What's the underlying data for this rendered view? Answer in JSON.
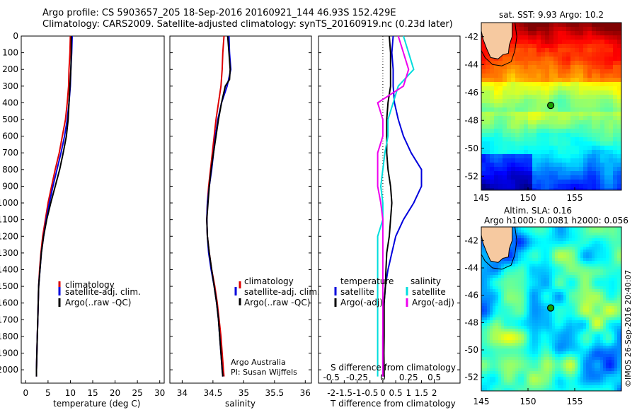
{
  "header": {
    "title_line1": "Argo profile: CS 5903657_205 18-Sep-2016 20160921_144 46.93S 152.429E",
    "title_line2": "Climatology: CARS2009. Satellite-adjusted climatology: synTS_20160919.nc (0.23d later)"
  },
  "colors": {
    "climatology": "#dd0000",
    "satellite": "#0000dd",
    "argo": "#000000",
    "salinity_satellite": "#00dddd",
    "salinity_argo": "#ee00ee"
  },
  "chart_data": [
    {
      "type": "line",
      "panel": "temperature",
      "xlabel": "temperature (deg C)",
      "ylabel": "",
      "xlim": [
        -1,
        31
      ],
      "ylim": [
        2080,
        0
      ],
      "xticks": [
        "0",
        "5",
        "10",
        "15",
        "20",
        "25",
        "30"
      ],
      "yticks": [
        "0",
        "100",
        "200",
        "300",
        "400",
        "500",
        "600",
        "700",
        "800",
        "900",
        "1000",
        "1100",
        "1200",
        "1300",
        "1400",
        "1500",
        "1600",
        "1700",
        "1800",
        "1900",
        "2000"
      ],
      "legend": [
        "climatology",
        "satellite-adj. clim.",
        "Argo(..raw -QC)"
      ],
      "series": [
        {
          "name": "climatology",
          "points": [
            [
              10.0,
              0
            ],
            [
              9.9,
              100
            ],
            [
              9.7,
              200
            ],
            [
              9.6,
              300
            ],
            [
              9.3,
              400
            ],
            [
              8.9,
              500
            ],
            [
              8.2,
              600
            ],
            [
              7.5,
              700
            ],
            [
              6.6,
              800
            ],
            [
              5.8,
              900
            ],
            [
              5.0,
              1000
            ],
            [
              4.4,
              1100
            ],
            [
              3.8,
              1200
            ],
            [
              3.4,
              1300
            ],
            [
              3.1,
              1400
            ],
            [
              2.9,
              1500
            ],
            [
              2.8,
              1600
            ],
            [
              2.7,
              1700
            ],
            [
              2.6,
              1800
            ],
            [
              2.5,
              1900
            ],
            [
              2.4,
              2000
            ],
            [
              2.4,
              2040
            ]
          ]
        },
        {
          "name": "satellite-adj. clim.",
          "points": [
            [
              10.4,
              0
            ],
            [
              10.3,
              100
            ],
            [
              10.1,
              200
            ],
            [
              10.0,
              300
            ],
            [
              9.7,
              400
            ],
            [
              9.3,
              500
            ],
            [
              8.7,
              600
            ],
            [
              7.9,
              700
            ],
            [
              7.0,
              800
            ],
            [
              6.1,
              900
            ],
            [
              5.3,
              1000
            ],
            [
              4.6,
              1100
            ],
            [
              4.0,
              1200
            ],
            [
              3.5,
              1300
            ],
            [
              3.2,
              1400
            ],
            [
              2.9,
              1500
            ],
            [
              2.8,
              1600
            ],
            [
              2.7,
              1700
            ],
            [
              2.6,
              1800
            ],
            [
              2.5,
              1900
            ],
            [
              2.4,
              2000
            ],
            [
              2.4,
              2040
            ]
          ]
        },
        {
          "name": "Argo(..raw -QC)",
          "points": [
            [
              10.2,
              0
            ],
            [
              10.2,
              100
            ],
            [
              10.1,
              200
            ],
            [
              9.9,
              300
            ],
            [
              9.7,
              400
            ],
            [
              9.5,
              500
            ],
            [
              9.1,
              600
            ],
            [
              8.4,
              700
            ],
            [
              7.6,
              800
            ],
            [
              6.6,
              900
            ],
            [
              5.6,
              1000
            ],
            [
              4.7,
              1100
            ],
            [
              4.0,
              1200
            ],
            [
              3.5,
              1300
            ],
            [
              3.2,
              1400
            ],
            [
              2.9,
              1500
            ],
            [
              2.8,
              1600
            ],
            [
              2.7,
              1700
            ],
            [
              2.6,
              1800
            ],
            [
              2.5,
              1900
            ],
            [
              2.4,
              2000
            ],
            [
              2.4,
              2040
            ]
          ]
        }
      ]
    },
    {
      "type": "line",
      "panel": "salinity",
      "xlabel": "salinity",
      "ylabel": "",
      "xlim": [
        33.8,
        36.1
      ],
      "ylim": [
        2080,
        0
      ],
      "xticks": [
        "34",
        "34.5",
        "35",
        "35.5",
        "36"
      ],
      "legend": [
        "climatology",
        "satellite-adj. clim.",
        "Argo(..raw -QC)"
      ],
      "annotation": [
        "Argo Australia",
        "PI: Susan Wijffels"
      ],
      "series": [
        {
          "name": "climatology",
          "points": [
            [
              34.68,
              0
            ],
            [
              34.66,
              100
            ],
            [
              34.65,
              200
            ],
            [
              34.63,
              300
            ],
            [
              34.59,
              400
            ],
            [
              34.55,
              500
            ],
            [
              34.52,
              600
            ],
            [
              34.49,
              700
            ],
            [
              34.46,
              800
            ],
            [
              34.43,
              900
            ],
            [
              34.41,
              1000
            ],
            [
              34.4,
              1100
            ],
            [
              34.41,
              1200
            ],
            [
              34.44,
              1300
            ],
            [
              34.48,
              1400
            ],
            [
              34.53,
              1500
            ],
            [
              34.57,
              1600
            ],
            [
              34.6,
              1700
            ],
            [
              34.63,
              1800
            ],
            [
              34.65,
              1900
            ],
            [
              34.67,
              2000
            ],
            [
              34.68,
              2040
            ]
          ]
        },
        {
          "name": "satellite-adj. clim.",
          "points": [
            [
              34.76,
              0
            ],
            [
              34.77,
              100
            ],
            [
              34.79,
              200
            ],
            [
              34.73,
              300
            ],
            [
              34.64,
              400
            ],
            [
              34.58,
              500
            ],
            [
              34.54,
              600
            ],
            [
              34.51,
              700
            ],
            [
              34.48,
              800
            ],
            [
              34.44,
              900
            ],
            [
              34.41,
              1000
            ],
            [
              34.4,
              1100
            ],
            [
              34.41,
              1200
            ],
            [
              34.43,
              1300
            ],
            [
              34.47,
              1400
            ],
            [
              34.52,
              1500
            ],
            [
              34.56,
              1600
            ],
            [
              34.59,
              1700
            ],
            [
              34.61,
              1800
            ],
            [
              34.63,
              1900
            ],
            [
              34.65,
              2000
            ],
            [
              34.66,
              2040
            ]
          ]
        },
        {
          "name": "Argo(..raw -QC)",
          "points": [
            [
              34.74,
              0
            ],
            [
              34.76,
              100
            ],
            [
              34.78,
              200
            ],
            [
              34.77,
              260
            ],
            [
              34.7,
              300
            ],
            [
              34.64,
              400
            ],
            [
              34.59,
              500
            ],
            [
              34.55,
              600
            ],
            [
              34.51,
              700
            ],
            [
              34.47,
              800
            ],
            [
              34.44,
              900
            ],
            [
              34.42,
              1000
            ],
            [
              34.4,
              1100
            ],
            [
              34.41,
              1200
            ],
            [
              34.44,
              1300
            ],
            [
              34.48,
              1400
            ],
            [
              34.52,
              1500
            ],
            [
              34.56,
              1600
            ],
            [
              34.59,
              1700
            ],
            [
              34.61,
              1800
            ],
            [
              34.63,
              1900
            ],
            [
              34.65,
              2000
            ],
            [
              34.66,
              2040
            ]
          ]
        }
      ]
    },
    {
      "type": "line",
      "panel": "difference",
      "xlabel": "T difference from climatology",
      "xlabel_top": "S difference from climatology",
      "xlim": [
        -2.5,
        3.0
      ],
      "ylim": [
        2080,
        0
      ],
      "xticks": [
        "-2",
        "-1.5",
        "-1",
        "-0.5",
        "0",
        "0.5",
        "1",
        "1.5",
        "2"
      ],
      "xticks_S": [
        "-0.5",
        "-0.25",
        "0",
        "0.25",
        "0.5"
      ],
      "legend_temperature": [
        "temperature",
        "satellite",
        "Argo(-adj)"
      ],
      "legend_salinity": [
        "salinity",
        "satellite",
        "Argo(-adj)"
      ],
      "series": [
        {
          "name": "temperature satellite",
          "points": [
            [
              0.4,
              0
            ],
            [
              0.35,
              100
            ],
            [
              0.4,
              200
            ],
            [
              0.4,
              300
            ],
            [
              0.45,
              400
            ],
            [
              0.6,
              500
            ],
            [
              0.8,
              600
            ],
            [
              1.1,
              700
            ],
            [
              1.5,
              800
            ],
            [
              1.5,
              900
            ],
            [
              1.2,
              1000
            ],
            [
              0.8,
              1100
            ],
            [
              0.5,
              1200
            ],
            [
              0.35,
              1300
            ],
            [
              0.2,
              1400
            ],
            [
              0.1,
              1500
            ],
            [
              0.05,
              1600
            ],
            [
              0.02,
              1700
            ],
            [
              0.0,
              1800
            ],
            [
              0.0,
              1900
            ],
            [
              0.0,
              2000
            ],
            [
              0.0,
              2040
            ]
          ]
        },
        {
          "name": "temperature Argo(-adj)",
          "points": [
            [
              0.25,
              0
            ],
            [
              0.3,
              100
            ],
            [
              0.3,
              200
            ],
            [
              0.3,
              300
            ],
            [
              0.2,
              400
            ],
            [
              0.15,
              500
            ],
            [
              0.15,
              600
            ],
            [
              0.15,
              700
            ],
            [
              0.2,
              800
            ],
            [
              0.3,
              900
            ],
            [
              0.35,
              1000
            ],
            [
              0.3,
              1100
            ],
            [
              0.25,
              1200
            ],
            [
              0.15,
              1300
            ],
            [
              0.12,
              1400
            ],
            [
              0.1,
              1500
            ],
            [
              0.05,
              1600
            ],
            [
              0.05,
              1700
            ],
            [
              0.05,
              1800
            ],
            [
              0.04,
              1900
            ],
            [
              0.05,
              2000
            ],
            [
              0.05,
              2040
            ]
          ]
        },
        {
          "name": "salinity satellite",
          "points": [
            [
              0.2,
              0
            ],
            [
              0.25,
              100
            ],
            [
              0.3,
              200
            ],
            [
              0.15,
              300
            ],
            [
              0.1,
              400
            ],
            [
              0.05,
              500
            ],
            [
              0.05,
              600
            ],
            [
              0.02,
              700
            ],
            [
              0.0,
              800
            ],
            [
              -0.02,
              900
            ],
            [
              0.0,
              1000
            ],
            [
              0.0,
              1100
            ],
            [
              -0.05,
              1200
            ],
            [
              -0.05,
              1300
            ],
            [
              -0.05,
              1400
            ],
            [
              -0.05,
              1500
            ],
            [
              -0.05,
              1600
            ],
            [
              -0.05,
              1700
            ],
            [
              -0.05,
              1800
            ],
            [
              -0.05,
              1900
            ],
            [
              -0.05,
              2000
            ],
            [
              -0.05,
              2040
            ]
          ]
        },
        {
          "name": "salinity Argo(-adj)",
          "points": [
            [
              0.15,
              0
            ],
            [
              0.2,
              100
            ],
            [
              0.25,
              200
            ],
            [
              0.2,
              300
            ],
            [
              -0.05,
              400
            ],
            [
              0.0,
              500
            ],
            [
              0.0,
              600
            ],
            [
              -0.05,
              700
            ],
            [
              -0.05,
              800
            ],
            [
              -0.05,
              900
            ],
            [
              -0.02,
              1000
            ],
            [
              0.0,
              1100
            ],
            [
              0.0,
              1200
            ],
            [
              0.0,
              1300
            ],
            [
              0.0,
              1400
            ],
            [
              0.0,
              1500
            ],
            [
              0.0,
              1600
            ],
            [
              0.0,
              1700
            ],
            [
              0.0,
              1800
            ],
            [
              0.0,
              1900
            ],
            [
              0.0,
              2000
            ],
            [
              0.0,
              2040
            ]
          ]
        }
      ]
    },
    {
      "type": "heatmap",
      "panel": "sst_map",
      "title": "sat. SST: 9.93 Argo: 10.2",
      "xlim": [
        145,
        160
      ],
      "ylim": [
        -53,
        -41
      ],
      "xticks": [
        "145",
        "150",
        "155"
      ],
      "yticks": [
        "-42",
        "-44",
        "-46",
        "-48",
        "-50",
        "-52"
      ],
      "marker": {
        "lon": 152.429,
        "lat": -46.93
      }
    },
    {
      "type": "heatmap",
      "panel": "sla_map",
      "title": "Altim. SLA: 0.16",
      "subtitle": "Argo h1000: 0.0081 h2000: 0.056",
      "xlim": [
        145,
        160
      ],
      "ylim": [
        -53,
        -41
      ],
      "xticks": [
        "145",
        "150",
        "155"
      ],
      "yticks": [
        "-42",
        "-44",
        "-46",
        "-48",
        "-50",
        "-52"
      ],
      "marker": {
        "lon": 152.429,
        "lat": -46.93
      }
    }
  ],
  "footer": {
    "side_stamp": "©IMOS 26-Sep-2016 20:40:07"
  }
}
